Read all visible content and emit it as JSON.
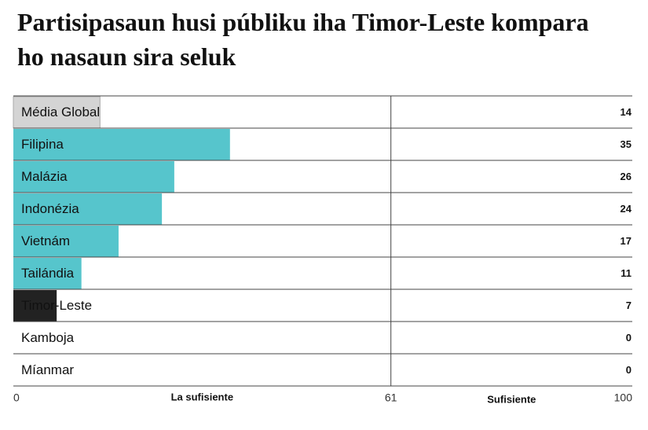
{
  "chart_data": {
    "type": "bar",
    "orientation": "horizontal",
    "title": "Partisipasaun husi públiku iha Timor-Leste kompara ho nasaun sira seluk",
    "categories": [
      "Média Global",
      "Filipina",
      "Malázia",
      "Indonézia",
      "Vietnám",
      "Tailándia",
      "Timor-Leste",
      "Kamboja",
      "Míanmar"
    ],
    "values": [
      14,
      35,
      26,
      24,
      17,
      11,
      7,
      0,
      0
    ],
    "colors": [
      "#d4d4d4",
      "#56c5cc",
      "#56c5cc",
      "#56c5cc",
      "#56c5cc",
      "#56c5cc",
      "#222222",
      "#56c5cc",
      "#56c5cc"
    ],
    "xlim": [
      0,
      100
    ],
    "xticks": [
      0,
      61,
      100
    ],
    "zone_labels": [
      "La sufisiente",
      "Sufisiente"
    ]
  }
}
